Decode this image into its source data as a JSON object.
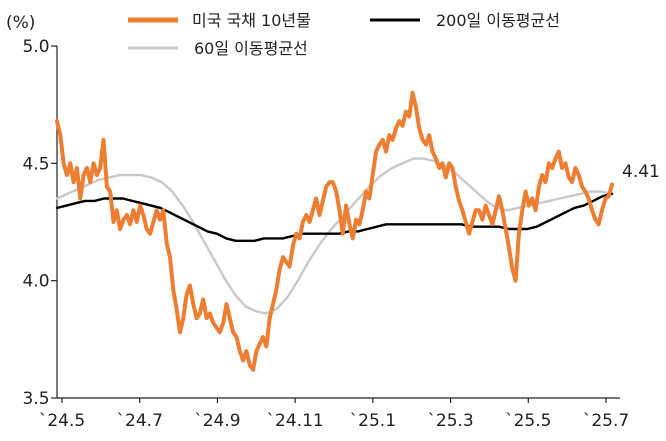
{
  "chart_data": {
    "type": "line",
    "unit_label": "(%)",
    "y_ticks": [
      "5.0",
      "4.5",
      "4.0",
      "3.5"
    ],
    "ylim": [
      3.5,
      5.0
    ],
    "x_ticks": [
      "`24.5",
      "`24.7",
      "`24.9",
      "`24.11",
      "`25.1",
      "`25.3",
      "`25.5",
      "`25.7"
    ],
    "end_label": "4.41",
    "legend_placement": "top",
    "grid": false,
    "series": [
      {
        "name": "미국 국채 10년물",
        "color": "#ED7D31",
        "values": [
          4.68,
          4.62,
          4.5,
          4.45,
          4.5,
          4.42,
          4.48,
          4.35,
          4.45,
          4.48,
          4.42,
          4.5,
          4.45,
          4.48,
          4.6,
          4.4,
          4.38,
          4.25,
          4.3,
          4.22,
          4.26,
          4.28,
          4.24,
          4.3,
          4.25,
          4.32,
          4.28,
          4.22,
          4.2,
          4.25,
          4.3,
          4.26,
          4.3,
          4.16,
          4.1,
          3.96,
          3.88,
          3.78,
          3.84,
          3.94,
          3.98,
          3.9,
          3.84,
          3.86,
          3.92,
          3.84,
          3.86,
          3.82,
          3.8,
          3.78,
          3.82,
          3.9,
          3.84,
          3.78,
          3.76,
          3.7,
          3.66,
          3.7,
          3.64,
          3.62,
          3.7,
          3.73,
          3.76,
          3.72,
          3.84,
          3.9,
          3.96,
          4.05,
          4.1,
          4.08,
          4.06,
          4.15,
          4.2,
          4.18,
          4.25,
          4.28,
          4.25,
          4.3,
          4.35,
          4.28,
          4.34,
          4.4,
          4.42,
          4.42,
          4.38,
          4.3,
          4.2,
          4.32,
          4.24,
          4.18,
          4.26,
          4.24,
          4.3,
          4.38,
          4.35,
          4.45,
          4.55,
          4.58,
          4.6,
          4.55,
          4.62,
          4.6,
          4.65,
          4.68,
          4.66,
          4.72,
          4.7,
          4.8,
          4.74,
          4.65,
          4.6,
          4.58,
          4.62,
          4.55,
          4.52,
          4.48,
          4.5,
          4.44,
          4.5,
          4.48,
          4.4,
          4.34,
          4.3,
          4.25,
          4.2,
          4.25,
          4.3,
          4.3,
          4.26,
          4.32,
          4.28,
          4.24,
          4.3,
          4.36,
          4.3,
          4.22,
          4.14,
          4.05,
          4.0,
          4.2,
          4.3,
          4.38,
          4.32,
          4.35,
          4.3,
          4.4,
          4.45,
          4.42,
          4.5,
          4.48,
          4.52,
          4.55,
          4.48,
          4.5,
          4.44,
          4.42,
          4.48,
          4.45,
          4.4,
          4.38,
          4.35,
          4.3,
          4.26,
          4.24,
          4.3,
          4.35,
          4.36,
          4.41
        ]
      },
      {
        "name": "200일 이동평균선",
        "color": "#000000",
        "values": [
          4.31,
          4.32,
          4.33,
          4.34,
          4.34,
          4.35,
          4.35,
          4.35,
          4.34,
          4.33,
          4.32,
          4.31,
          4.29,
          4.27,
          4.25,
          4.23,
          4.21,
          4.2,
          4.18,
          4.17,
          4.17,
          4.17,
          4.18,
          4.18,
          4.18,
          4.19,
          4.2,
          4.2,
          4.2,
          4.2,
          4.2,
          4.21,
          4.21,
          4.22,
          4.23,
          4.24,
          4.24,
          4.24,
          4.24,
          4.24,
          4.24,
          4.24,
          4.24,
          4.24,
          4.23,
          4.23,
          4.23,
          4.23,
          4.22,
          4.22,
          4.22,
          4.23,
          4.25,
          4.27,
          4.29,
          4.31,
          4.32,
          4.34,
          4.36,
          4.37
        ]
      },
      {
        "name": "60일 이동평균선",
        "color": "#C8C8C8",
        "values": [
          4.35,
          4.37,
          4.39,
          4.41,
          4.43,
          4.44,
          4.45,
          4.45,
          4.45,
          4.44,
          4.42,
          4.38,
          4.32,
          4.25,
          4.17,
          4.09,
          4.01,
          3.94,
          3.89,
          3.87,
          3.86,
          3.88,
          3.93,
          4.0,
          4.08,
          4.15,
          4.21,
          4.26,
          4.31,
          4.36,
          4.41,
          4.45,
          4.48,
          4.5,
          4.52,
          4.52,
          4.51,
          4.49,
          4.46,
          4.42,
          4.38,
          4.34,
          4.31,
          4.3,
          4.31,
          4.32,
          4.33,
          4.34,
          4.35,
          4.36,
          4.37,
          4.38,
          4.38,
          4.37
        ]
      }
    ]
  }
}
